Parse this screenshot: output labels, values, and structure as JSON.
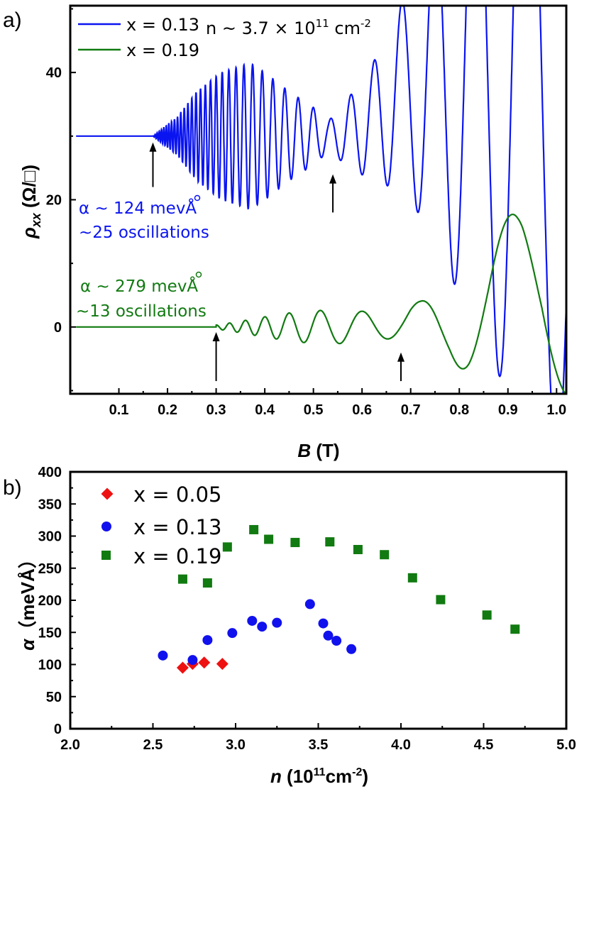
{
  "chart_data": [
    {
      "type": "line",
      "panel_label": "a)",
      "xlabel_var": "B",
      "xlabel_unit": " (T)",
      "ylabel_var": "ρ",
      "ylabel_sub": "xx",
      "ylabel_unit": " (Ω/□)",
      "xlim": [
        0.0,
        1.02
      ],
      "ylim": [
        -10.5,
        50.5
      ],
      "xticks": [
        0.1,
        0.2,
        0.3,
        0.4,
        0.5,
        0.6,
        0.7,
        0.8,
        0.9,
        1.0
      ],
      "xtick_labels": [
        "0.1",
        "0.2",
        "0.3",
        "0.4",
        "0.5",
        "0.6",
        "0.7",
        "0.8",
        "0.9",
        "1.0"
      ],
      "yticks": [
        0,
        20,
        40
      ],
      "ytick_labels": [
        "0",
        "20",
        "40"
      ],
      "density_label": "n ~ 3.7 × 10",
      "density_exp": "11",
      "density_unit": " cm",
      "density_unit_exp": "-2",
      "series": [
        {
          "name": "x = 0.13",
          "color": "#0a14f0",
          "baseline": 30,
          "onset_B": 0.17,
          "envelope": [
            [
              0.17,
              0
            ],
            [
              0.22,
              3
            ],
            [
              0.26,
              7
            ],
            [
              0.31,
              10
            ],
            [
              0.35,
              11
            ],
            [
              0.37,
              11.5
            ],
            [
              0.4,
              10
            ],
            [
              0.45,
              7
            ],
            [
              0.5,
              4.5
            ],
            [
              0.53,
              2.5
            ],
            [
              0.55,
              3.5
            ],
            [
              0.58,
              6
            ],
            [
              0.62,
              9
            ],
            [
              0.66,
              13
            ],
            [
              0.7,
              17
            ],
            [
              0.74,
              24
            ],
            [
              0.78,
              32
            ],
            [
              0.82,
              40
            ],
            [
              0.86,
              48
            ],
            [
              0.92,
              58
            ],
            [
              1.02,
              70
            ]
          ],
          "offset": [
            [
              0.17,
              0
            ],
            [
              0.35,
              0
            ],
            [
              0.45,
              0
            ],
            [
              0.55,
              0
            ],
            [
              0.62,
              2
            ],
            [
              0.66,
              5
            ],
            [
              0.7,
              7
            ],
            [
              0.75,
              9
            ],
            [
              0.82,
              12
            ],
            [
              0.88,
              14
            ],
            [
              1.02,
              16
            ]
          ]
        },
        {
          "name": "x = 0.19",
          "color": "#117a11",
          "baseline": 0,
          "onset_B": 0.3,
          "envelope": [
            [
              0.27,
              0
            ],
            [
              0.3,
              0.3
            ],
            [
              0.35,
              0.9
            ],
            [
              0.4,
              1.6
            ],
            [
              0.45,
              2.2
            ],
            [
              0.5,
              2.6
            ],
            [
              0.56,
              2.6
            ],
            [
              0.62,
              2.4
            ],
            [
              0.66,
              2.2
            ],
            [
              0.68,
              2.3
            ],
            [
              0.72,
              3.2
            ],
            [
              0.78,
              5.5
            ],
            [
              0.82,
              8.5
            ],
            [
              0.87,
              12
            ],
            [
              0.93,
              16
            ],
            [
              1.02,
              18
            ]
          ],
          "offset": [
            [
              0.27,
              0
            ],
            [
              0.6,
              0
            ],
            [
              0.66,
              0.4
            ],
            [
              0.7,
              1
            ],
            [
              0.76,
              0.5
            ],
            [
              0.82,
              0.8
            ],
            [
              0.86,
              1.5
            ],
            [
              0.92,
              4
            ],
            [
              0.97,
              7
            ],
            [
              1.02,
              7
            ]
          ]
        }
      ],
      "arrows": [
        {
          "x": 0.17,
          "series": "x = 0.13"
        },
        {
          "x": 0.54,
          "series": "x = 0.13"
        },
        {
          "x": 0.3,
          "series": "x = 0.19"
        },
        {
          "x": 0.68,
          "series": "x = 0.19"
        }
      ],
      "annotations": {
        "blue_line1": "α ~ 124 mevÅ",
        "blue_line2": "~25 oscillations",
        "green_line1": "α ~ 279 mevÅ",
        "green_line2": "~13 oscillations"
      }
    },
    {
      "type": "scatter",
      "panel_label": "b)",
      "xlabel_var": "n",
      "xlabel_unit": " (10",
      "xlabel_exp": "11",
      "xlabel_unit2": "cm",
      "xlabel_exp2": "-2",
      "xlabel_close": ")",
      "ylabel_var": "α",
      "ylabel_unit": "（meVÅ）",
      "xlim": [
        2.0,
        5.0
      ],
      "ylim": [
        0,
        400
      ],
      "xticks": [
        2.0,
        2.5,
        3.0,
        3.5,
        4.0,
        4.5,
        5.0
      ],
      "xtick_labels": [
        "2.0",
        "2.5",
        "3.0",
        "3.5",
        "4.0",
        "4.5",
        "5.0"
      ],
      "yticks": [
        0,
        50,
        100,
        150,
        200,
        250,
        300,
        350,
        400
      ],
      "ytick_labels": [
        "0",
        "50",
        "100",
        "150",
        "200",
        "250",
        "300",
        "350",
        "400"
      ],
      "series": [
        {
          "name": "x = 0.05",
          "marker": "diamond",
          "color": "#ee1111",
          "x": [
            2.68,
            2.74,
            2.81,
            2.92
          ],
          "y": [
            95,
            101,
            103,
            101
          ]
        },
        {
          "name": "x = 0.13",
          "marker": "circle",
          "color": "#1111ee",
          "x": [
            2.56,
            2.74,
            2.83,
            2.98,
            3.1,
            3.16,
            3.25,
            3.45,
            3.53,
            3.56,
            3.61,
            3.7
          ],
          "y": [
            114,
            107,
            138,
            149,
            168,
            159,
            165,
            194,
            164,
            145,
            137,
            124
          ]
        },
        {
          "name": "x = 0.19",
          "marker": "square",
          "color": "#117a11",
          "x": [
            2.68,
            2.83,
            2.95,
            3.11,
            3.2,
            3.36,
            3.57,
            3.74,
            3.9,
            4.07,
            4.24,
            4.52,
            4.69
          ],
          "y": [
            233,
            227,
            283,
            310,
            295,
            290,
            291,
            279,
            271,
            235,
            201,
            177,
            155
          ]
        }
      ]
    }
  ]
}
